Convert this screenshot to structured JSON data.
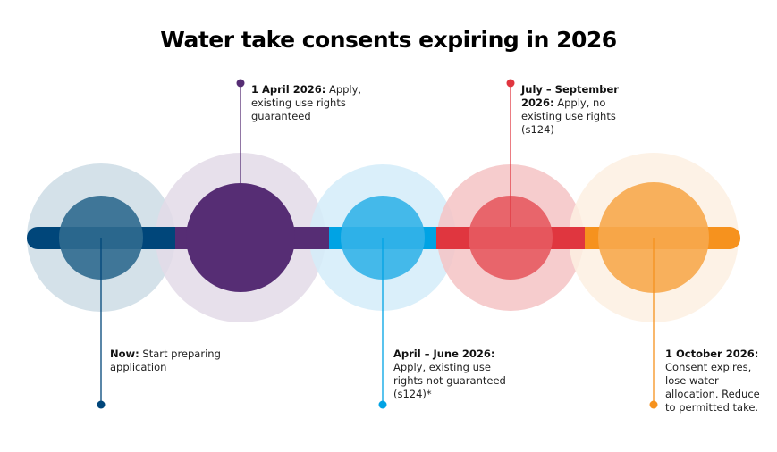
{
  "title": "Water take consents expiring in 2026",
  "milestones": [
    {
      "heading": "Now:",
      "text": "Start preparing application",
      "color": "#00467a",
      "inner": "#2f6a8f",
      "outer": "#cddce5",
      "position": "below"
    },
    {
      "heading": "1 April 2026:",
      "text": "Apply, existing use rights guaranteed",
      "color": "#562d74",
      "inner": "#562d74",
      "outer": "#e3dbe8",
      "position": "above"
    },
    {
      "heading": "April – June 2026:",
      "text": "Apply, existing use rights not guaranteed (s124)*",
      "color": "#00a3e4",
      "inner": "#33b3e8",
      "outer": "#d3ecf9",
      "position": "below"
    },
    {
      "heading": "July – September 2026:",
      "text": "Apply, no existing use rights (s124)",
      "color": "#e0363f",
      "inner": "#e75a61",
      "outer": "#f5c3c4",
      "position": "above"
    },
    {
      "heading": "1 October 2026:",
      "text": "Consent expires, lose water allocation. Reduce to permitted take.",
      "color": "#f6921e",
      "inner": "#f7a84d",
      "outer": "#fdf0e2",
      "position": "below"
    }
  ]
}
